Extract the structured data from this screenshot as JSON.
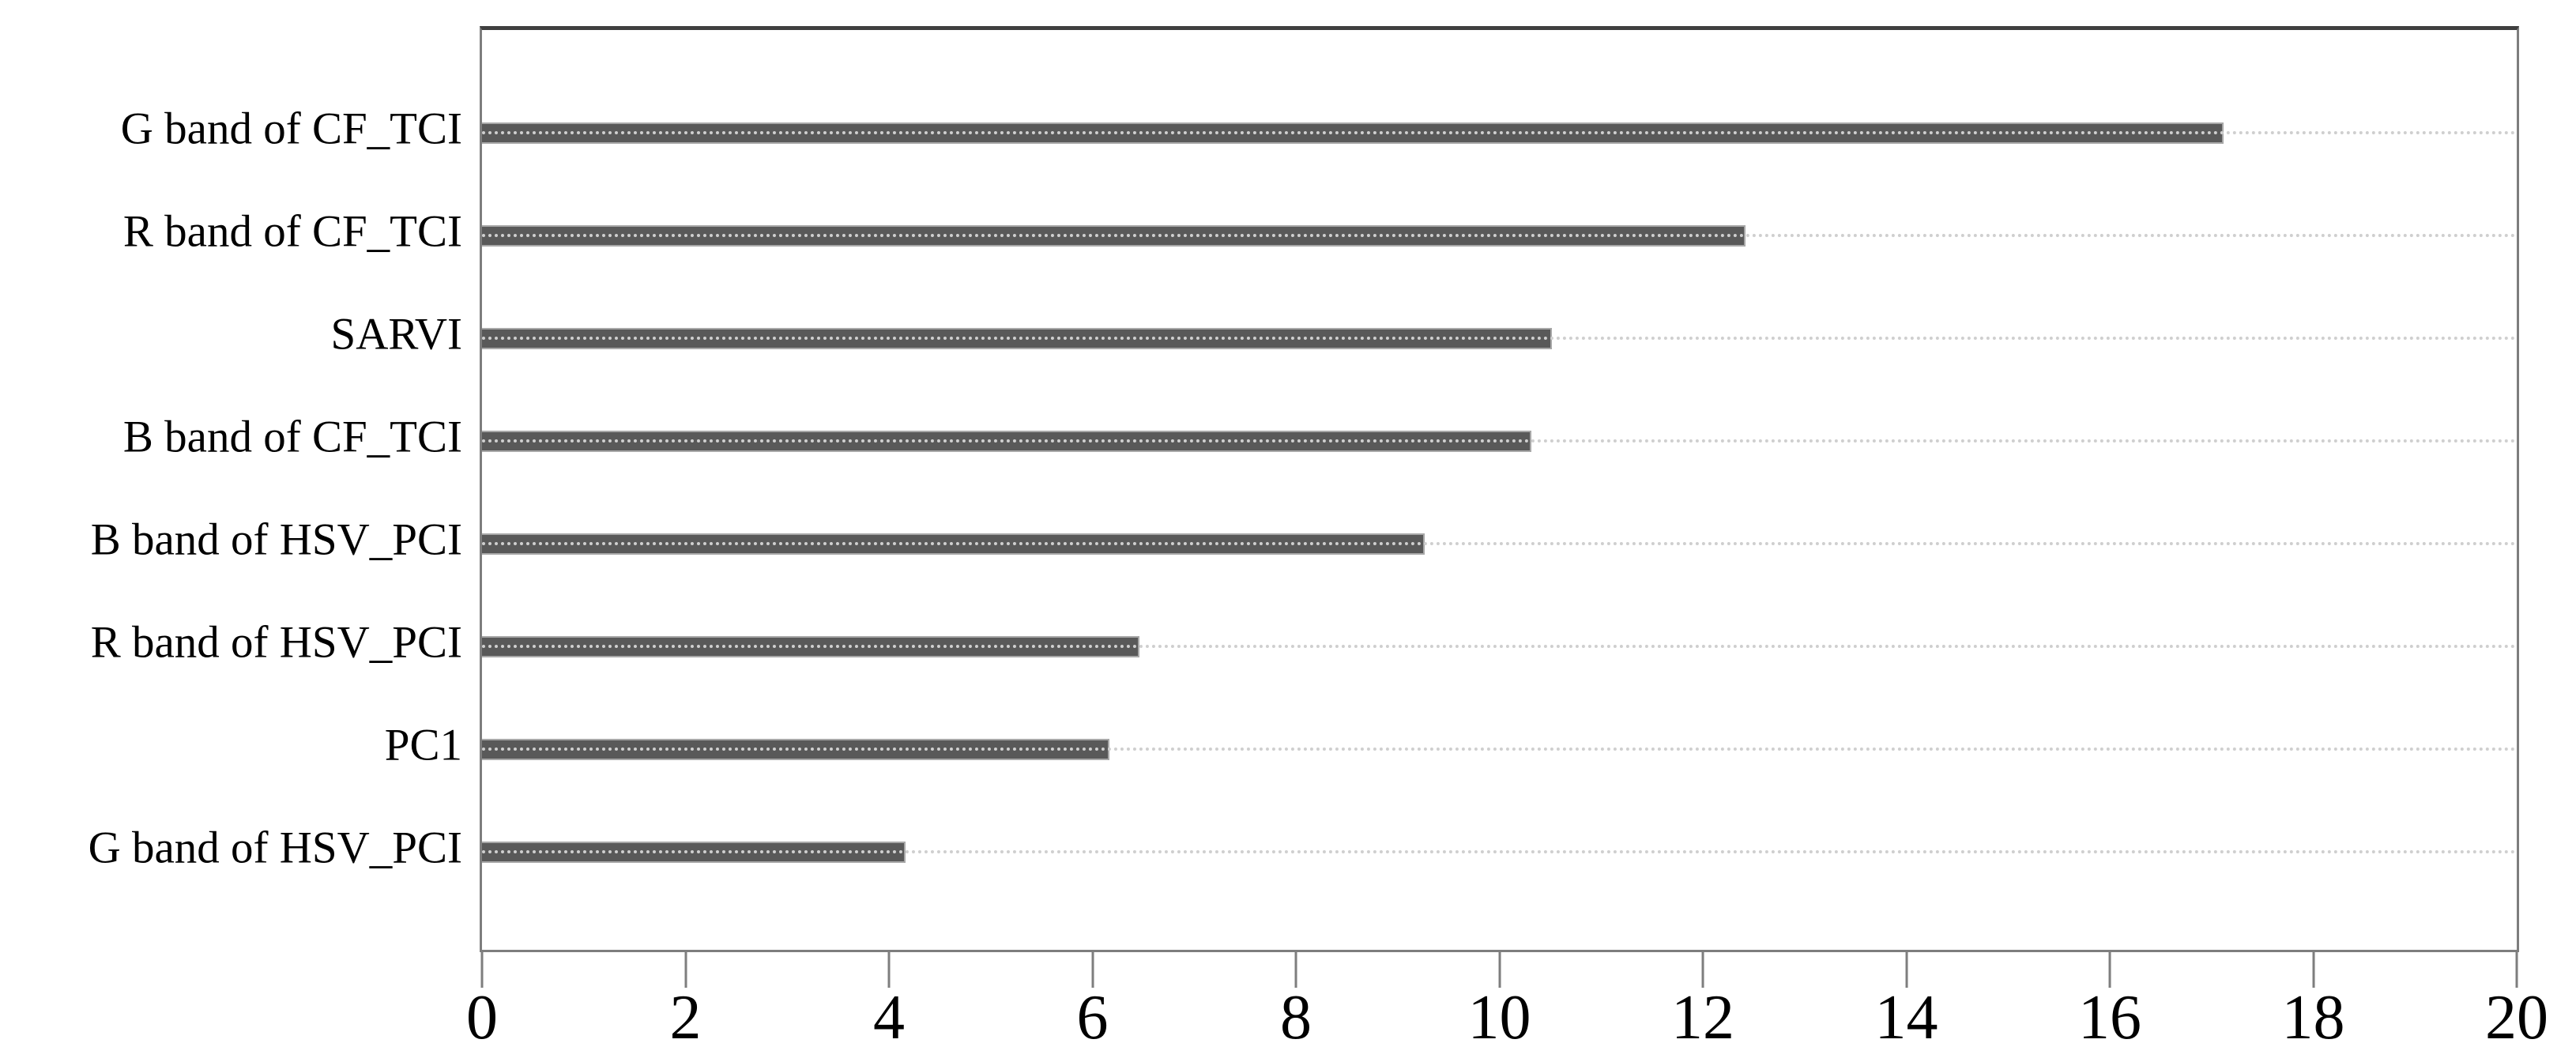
{
  "chart_data": {
    "type": "bar",
    "orientation": "horizontal",
    "title": "",
    "xlabel": "",
    "ylabel": "",
    "categories": [
      "G band of CF_TCI",
      "R band of CF_TCI",
      "SARVI",
      "B band of CF_TCI",
      "B band of HSV_PCI",
      "R band of HSV_PCI",
      "PC1",
      "G band of HSV_PCI"
    ],
    "values": [
      17.1,
      12.4,
      10.5,
      10.3,
      9.25,
      6.45,
      6.15,
      4.15
    ],
    "xlim": [
      0,
      20
    ],
    "xticks": [
      0,
      2,
      4,
      6,
      8,
      10,
      12,
      14,
      16,
      18,
      20
    ],
    "legend": "none",
    "grid": "horizontal dotted line through each category row",
    "colors": {
      "bar_fill": "#595959",
      "bar_edge": "#a8a8a8",
      "axis_border": "#7e7e7e",
      "top_border": "#3f3f3f",
      "gridline": "#cfcfcf",
      "text": "#000000",
      "background": "#ffffff"
    }
  }
}
